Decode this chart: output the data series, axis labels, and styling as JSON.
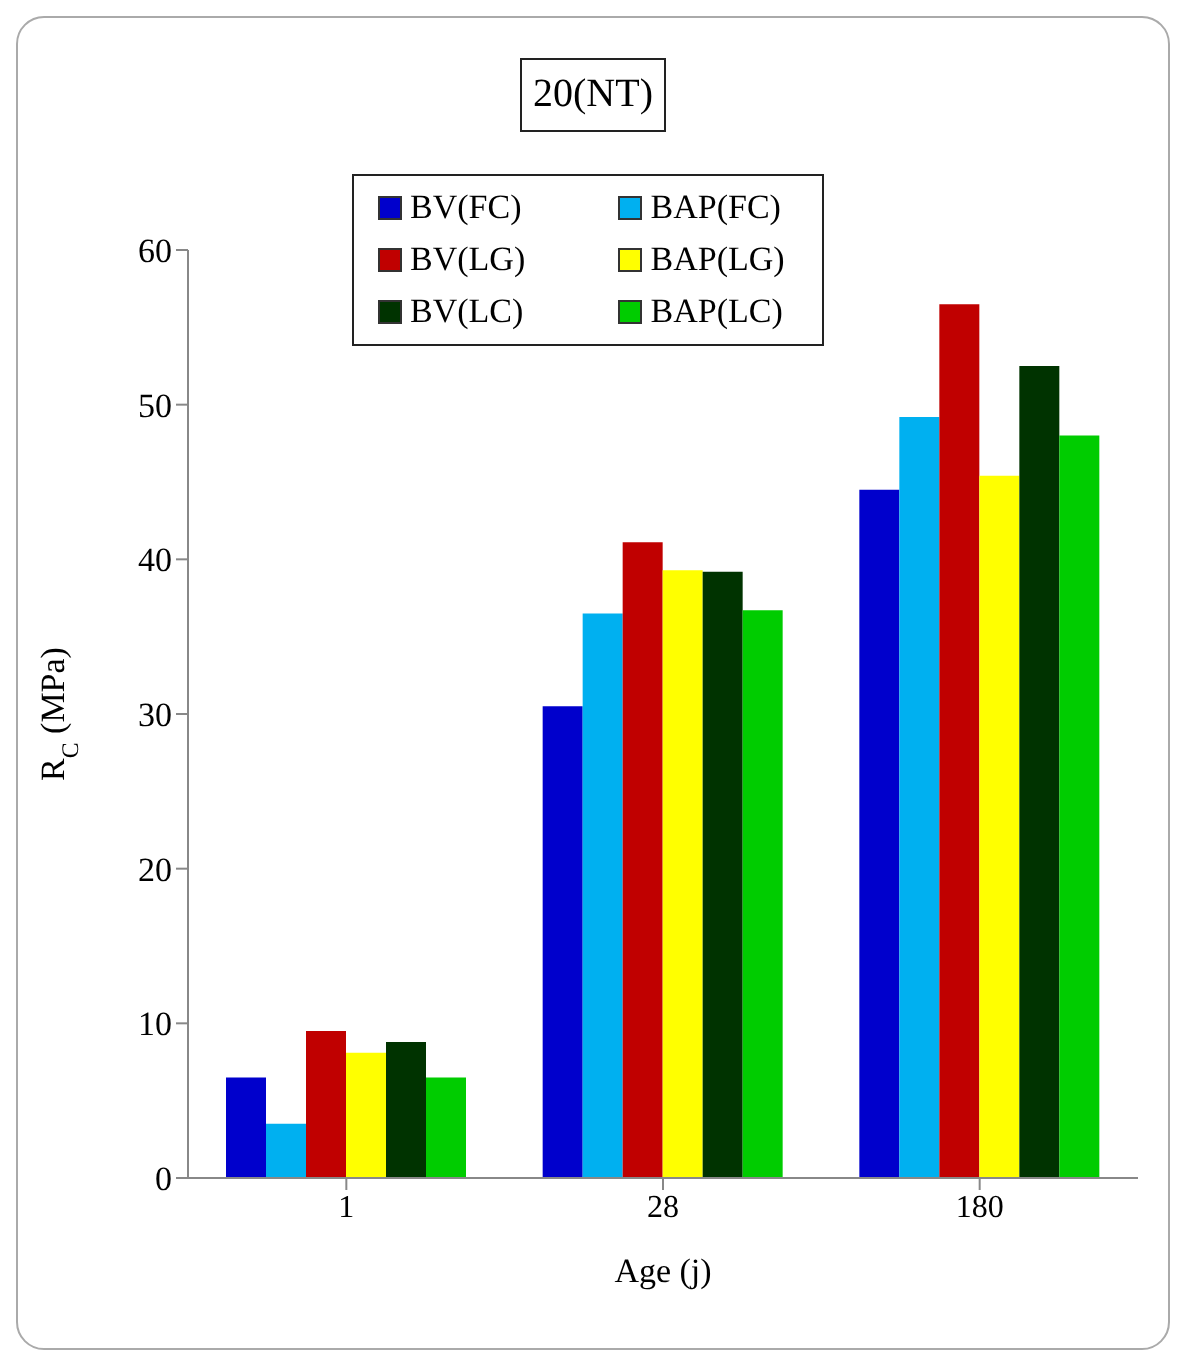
{
  "chart_data": {
    "type": "bar",
    "title": "20(NT)",
    "xlabel": "Age (j)",
    "ylabel": "R$_{C}$  (MPa)",
    "categories": [
      "1",
      "28",
      "180"
    ],
    "series": [
      {
        "name": "BV(FC)",
        "color": "#0000cc",
        "values": [
          6.5,
          30.5,
          44.5
        ]
      },
      {
        "name": "BAP(FC)",
        "color": "#00b0f0",
        "values": [
          3.5,
          36.5,
          49.2
        ]
      },
      {
        "name": "BV(LG)",
        "color": "#c00000",
        "values": [
          9.5,
          41.1,
          56.5
        ]
      },
      {
        "name": "BAP(LG)",
        "color": "#ffff00",
        "values": [
          8.1,
          39.3,
          45.4
        ]
      },
      {
        "name": "BV(LC)",
        "color": "#003300",
        "values": [
          8.8,
          39.2,
          52.5
        ]
      },
      {
        "name": "BAP(LC)",
        "color": "#00cc00",
        "values": [
          6.5,
          36.7,
          48.0
        ]
      }
    ],
    "ylim": [
      0,
      60
    ],
    "yticks": [
      0,
      10,
      20,
      30,
      40,
      50,
      60
    ],
    "grid": false,
    "legend": "top"
  }
}
